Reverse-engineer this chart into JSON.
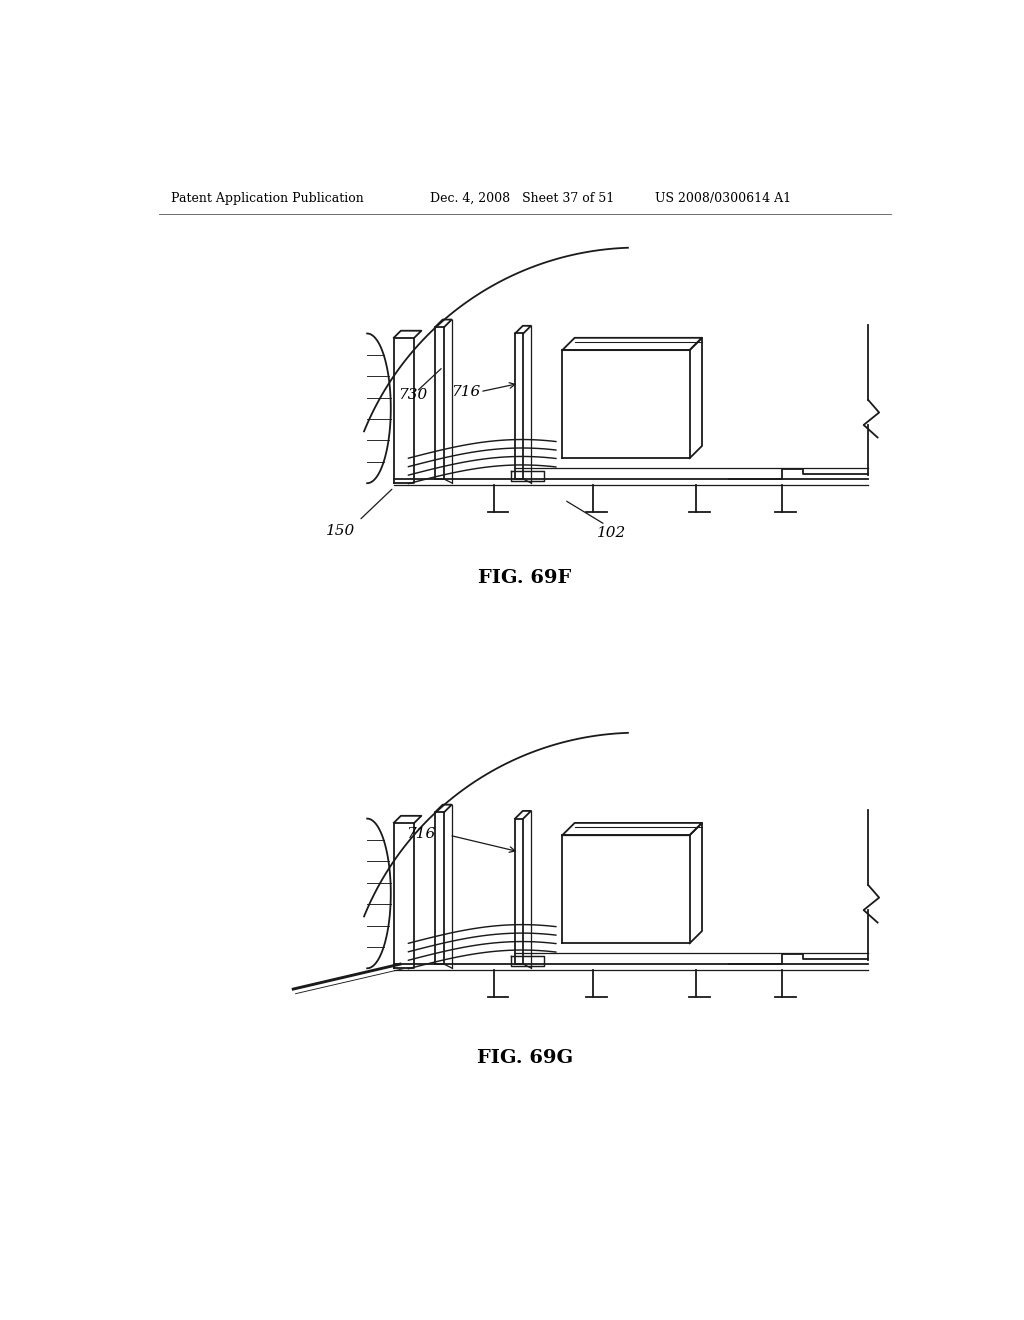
{
  "header_left": "Patent Application Publication",
  "header_mid": "Dec. 4, 2008   Sheet 37 of 51",
  "header_right": "US 2008/0300614 A1",
  "fig1_label": "FIG. 69F",
  "fig2_label": "FIG. 69G",
  "bg_color": "#ffffff",
  "line_color": "#1a1a1a",
  "line_width": 1.3
}
